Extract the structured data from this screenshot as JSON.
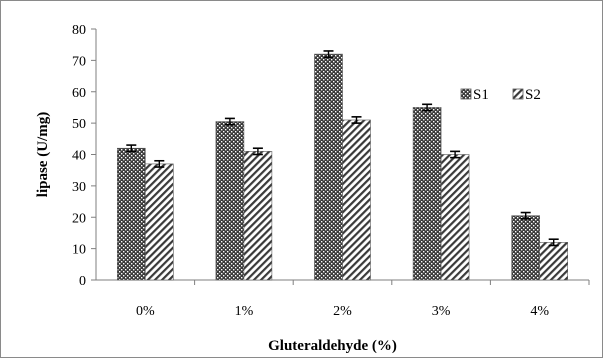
{
  "chart_data": {
    "type": "bar",
    "title": "",
    "xlabel": "Gluteraldehyde (%)",
    "ylabel": "lipase  (U/mg)",
    "categories": [
      "0%",
      "1%",
      "2%",
      "3%",
      "4%"
    ],
    "ylim": [
      0,
      80
    ],
    "yticks": [
      "0",
      "10",
      "20",
      "30",
      "40",
      "50",
      "60",
      "70",
      "80"
    ],
    "grid": false,
    "legend_position": "top-right",
    "series": [
      {
        "name": "S1",
        "values": [
          42,
          50.5,
          72,
          55,
          20.5
        ],
        "errors": [
          1,
          1,
          1,
          1,
          1
        ],
        "pattern": "dotted-checker"
      },
      {
        "name": "S2",
        "values": [
          37,
          41,
          51,
          40,
          12
        ],
        "errors": [
          1,
          1,
          1,
          1,
          1
        ],
        "pattern": "diagonal-hatch"
      }
    ]
  }
}
